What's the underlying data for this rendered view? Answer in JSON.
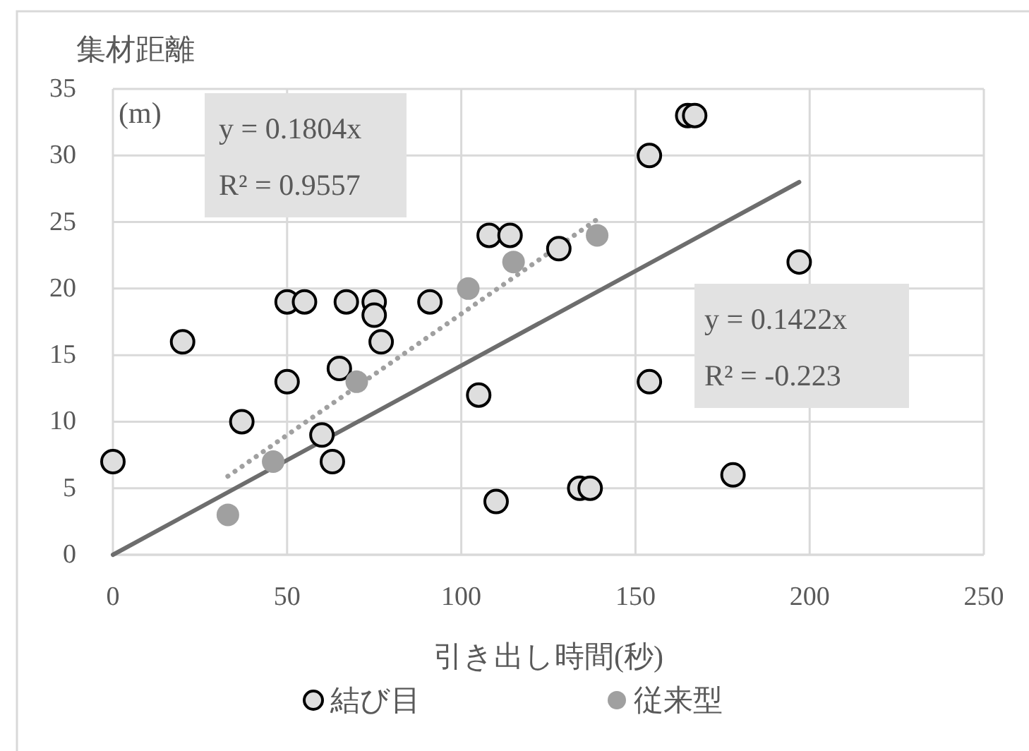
{
  "chart_data": {
    "type": "scatter",
    "xlabel": "引き出し時間(秒)",
    "ylabel": "集材距離",
    "annotations": [
      "(m)",
      "y = 0.1804x",
      "R² = 0.9557",
      "y = 0.1422x",
      "R² = -0.223"
    ],
    "xlim": [
      0,
      250
    ],
    "ylim": [
      0,
      35
    ],
    "xticks": [
      0,
      50,
      100,
      150,
      200,
      250
    ],
    "yticks": [
      0,
      5,
      10,
      15,
      20,
      25,
      30,
      35
    ],
    "grid": true,
    "legend": "bottom",
    "marker": "circle",
    "series": [
      {
        "name": "結び目",
        "color": "#dedede",
        "x": [
          0,
          20,
          37,
          50,
          50,
          55,
          60,
          63,
          65,
          67,
          75,
          75,
          77,
          91,
          105,
          108,
          110,
          114,
          128,
          134,
          137,
          154,
          154,
          165,
          167,
          178,
          197
        ],
        "values": [
          7,
          16,
          10,
          19,
          13,
          19,
          9,
          7,
          14,
          19,
          19,
          18,
          16,
          19,
          12,
          24,
          4,
          24,
          23,
          5,
          5,
          30,
          13,
          33,
          33,
          6,
          22
        ]
      },
      {
        "name": "従来型",
        "color": "#a0a0a0",
        "x": [
          33,
          46,
          70,
          102,
          115,
          139
        ],
        "values": [
          3,
          7,
          13,
          20,
          22,
          24
        ]
      },
      {
        "type": "line",
        "color": "#a0a0a0",
        "line_style": "dotted",
        "marker": "none",
        "x": [
          33,
          139
        ],
        "values": [
          5.9,
          25.2
        ]
      },
      {
        "type": "line",
        "color": "#6d6d6d",
        "line_style": "solid",
        "marker": "none",
        "x": [
          0,
          197
        ],
        "values": [
          0,
          28
        ]
      }
    ]
  }
}
